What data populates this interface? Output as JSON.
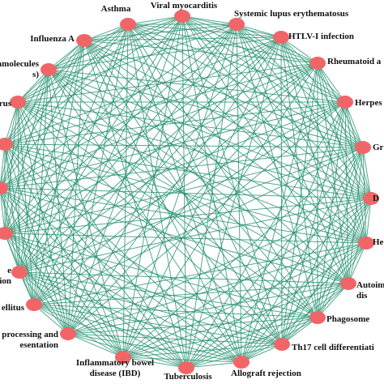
{
  "network": {
    "colors": {
      "node_fill": "#f06668",
      "edge": "#22906e",
      "label": "#111111",
      "background": "#ffffff"
    },
    "nodes": [
      {
        "id": "asthma",
        "lines": [
          "Asthma"
        ]
      },
      {
        "id": "viral-myocarditis",
        "lines": [
          "Viral myocarditis"
        ]
      },
      {
        "id": "sle",
        "lines": [
          "Systemic lupus erythematosus"
        ]
      },
      {
        "id": "htlv",
        "lines": [
          "HTLV-I infection"
        ]
      },
      {
        "id": "rheumatoid",
        "lines": [
          "Rheumatoid a"
        ]
      },
      {
        "id": "herpes",
        "lines": [
          "Herpes"
        ]
      },
      {
        "id": "gr",
        "lines": [
          "Gr"
        ]
      },
      {
        "id": "d-right",
        "lines": [
          "D"
        ]
      },
      {
        "id": "he",
        "lines": [
          "He"
        ]
      },
      {
        "id": "autoim",
        "lines": [
          "Autoim",
          "dis"
        ]
      },
      {
        "id": "phagosome",
        "lines": [
          "Phagosome"
        ]
      },
      {
        "id": "th17",
        "lines": [
          "Th17 cell differentiati"
        ]
      },
      {
        "id": "allograft",
        "lines": [
          "Allograft rejection"
        ]
      },
      {
        "id": "tuberculosis",
        "lines": [
          "Tuberculosis"
        ]
      },
      {
        "id": "ibd",
        "lines": [
          "Inflammatory bowel",
          "disease (IBD)"
        ]
      },
      {
        "id": "antigen",
        "lines": [
          "processing and",
          "esentation"
        ]
      },
      {
        "id": "mellitus",
        "lines": [
          "ellitus"
        ]
      },
      {
        "id": "e-rejection",
        "lines": [
          "e",
          "ection"
        ]
      },
      {
        "id": "left-lower",
        "lines": [
          ""
        ]
      },
      {
        "id": "left-mid",
        "lines": [
          ""
        ]
      },
      {
        "id": "left-upper",
        "lines": [
          ""
        ]
      },
      {
        "id": "rus",
        "lines": [
          "rus"
        ]
      },
      {
        "id": "cams",
        "lines": [
          "amolecules",
          "s)"
        ]
      },
      {
        "id": "influenza",
        "lines": [
          "Influenza A"
        ]
      }
    ]
  }
}
